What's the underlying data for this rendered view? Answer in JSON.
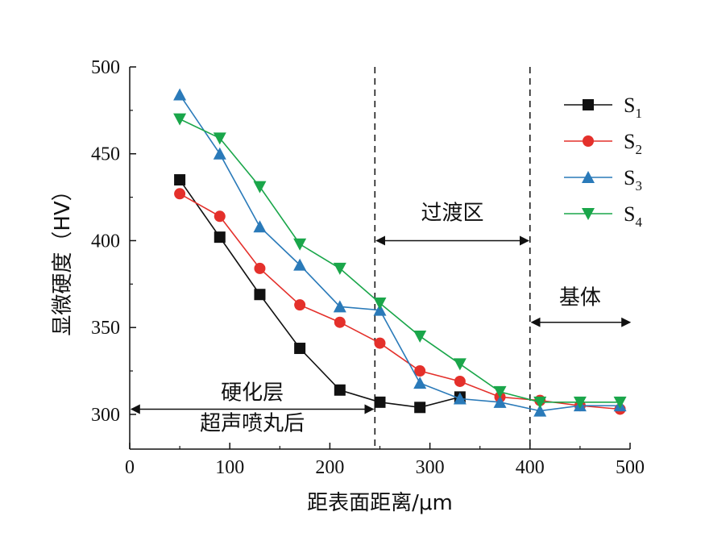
{
  "chart_data": {
    "type": "line",
    "xlabel": "距表面距离/μm",
    "ylabel": "显微硬度（HV）",
    "xlim": [
      0,
      500
    ],
    "ylim": [
      280,
      500
    ],
    "x_ticks": [
      0,
      100,
      200,
      300,
      400,
      500
    ],
    "y_ticks": [
      300,
      350,
      400,
      450,
      500
    ],
    "grid": false,
    "legend_position": "top-right",
    "series": [
      {
        "name": "S",
        "sub": "1",
        "color": "#111111",
        "marker": "square",
        "x": [
          50,
          90,
          130,
          170,
          210,
          250,
          290,
          330
        ],
        "y": [
          435,
          402,
          369,
          338,
          314,
          307,
          304,
          310
        ]
      },
      {
        "name": "S",
        "sub": "2",
        "color": "#e4302b",
        "marker": "circle",
        "x": [
          50,
          90,
          130,
          170,
          210,
          250,
          290,
          330,
          370,
          410,
          450,
          490
        ],
        "y": [
          427,
          414,
          384,
          363,
          353,
          341,
          325,
          319,
          310,
          308,
          305,
          303
        ]
      },
      {
        "name": "S",
        "sub": "3",
        "color": "#2a7ab9",
        "marker": "triangle-up",
        "x": [
          50,
          90,
          130,
          170,
          210,
          250,
          290,
          330,
          370,
          410,
          450,
          490
        ],
        "y": [
          484,
          450,
          408,
          386,
          362,
          360,
          318,
          309,
          307,
          302,
          305,
          305
        ]
      },
      {
        "name": "S",
        "sub": "4",
        "color": "#1aa64a",
        "marker": "triangle-down",
        "x": [
          50,
          90,
          130,
          170,
          210,
          250,
          290,
          330,
          370,
          410,
          450,
          490
        ],
        "y": [
          470,
          459,
          431,
          398,
          384,
          364,
          345,
          329,
          313,
          307,
          307,
          307
        ]
      }
    ],
    "vlines": [
      245,
      400
    ],
    "annotations": {
      "transition": {
        "label": "过渡区",
        "from": 245,
        "to": 400,
        "y": 400
      },
      "base": {
        "label": "基体",
        "from": 400,
        "to": 500,
        "y": 353
      },
      "hardened": {
        "label1": "硬化层",
        "label2": "超声喷丸后",
        "from": 0,
        "to": 245,
        "y": 303
      }
    }
  }
}
